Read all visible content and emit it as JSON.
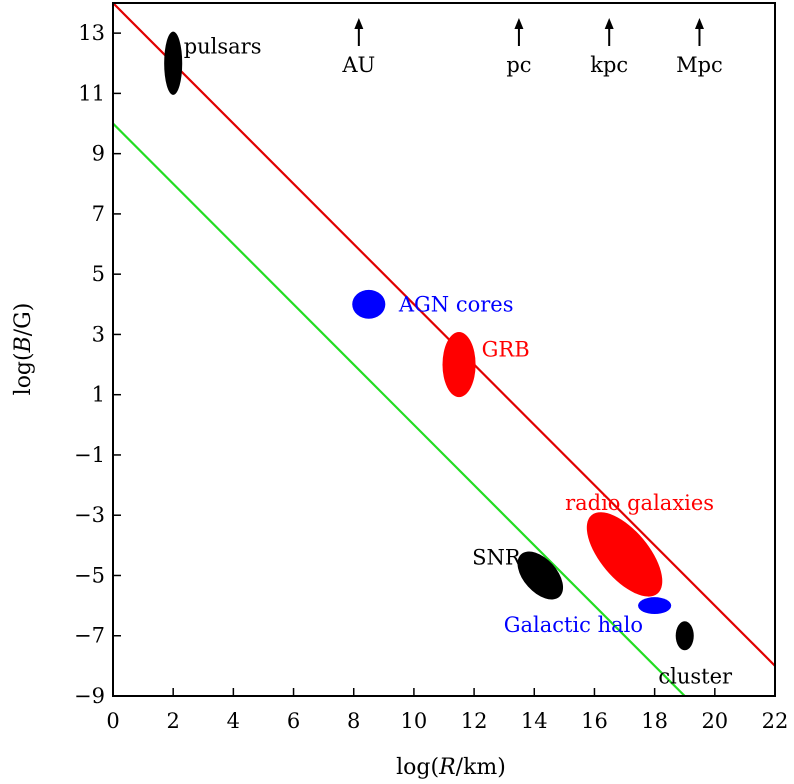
{
  "chart_data": {
    "type": "scatter",
    "xlabel_parts": {
      "prefix": "log(",
      "var": "R",
      "suffix": "/km)"
    },
    "ylabel_parts": {
      "prefix": "log(",
      "var": "B",
      "suffix": "/G)"
    },
    "xlim": [
      0,
      22
    ],
    "ylim": [
      -9,
      14
    ],
    "x_ticks": [
      0,
      2,
      4,
      6,
      8,
      10,
      12,
      14,
      16,
      18,
      20,
      22
    ],
    "y_ticks": [
      -9,
      -7,
      -5,
      -3,
      -1,
      1,
      3,
      5,
      7,
      9,
      11,
      13
    ],
    "x_tick_labels": [
      "0",
      "2",
      "4",
      "6",
      "8",
      "10",
      "12",
      "14",
      "16",
      "18",
      "20",
      "22"
    ],
    "y_tick_labels": [
      "−9",
      "−7",
      "−5",
      "−3",
      "−1",
      "1",
      "3",
      "5",
      "7",
      "9",
      "11",
      "13"
    ],
    "grid": false,
    "lines": [
      {
        "color": "#e00000",
        "x": [
          0,
          22
        ],
        "y": [
          14,
          -8
        ]
      },
      {
        "color": "#22dd22",
        "x": [
          0,
          19
        ],
        "y": [
          10,
          -9
        ]
      }
    ],
    "sources": [
      {
        "label": "pulsars",
        "x": 2,
        "y": 12,
        "rx": 0.3,
        "ry": 1.05,
        "angle": 0,
        "color": "#000000"
      },
      {
        "label": "AGN cores",
        "x": 8.5,
        "y": 4,
        "rx": 0.55,
        "ry": 0.48,
        "angle": 0,
        "color": "#0000ff"
      },
      {
        "label": "GRB",
        "x": 11.5,
        "y": 2,
        "rx": 0.55,
        "ry": 1.08,
        "angle": 0,
        "color": "#ff0000"
      },
      {
        "label": "radio galaxies",
        "x": 17,
        "y": -4.3,
        "rx": 0.8,
        "ry": 1.7,
        "angle": -40,
        "color": "#ff0000"
      },
      {
        "label": "SNR",
        "x": 14.2,
        "y": -5,
        "rx": 0.55,
        "ry": 0.95,
        "angle": -42,
        "color": "#000000"
      },
      {
        "label": "Galactic halo",
        "x": 18,
        "y": -6,
        "rx": 0.55,
        "ry": 0.28,
        "angle": 0,
        "color": "#0000ff"
      },
      {
        "label": "cluster",
        "x": 19,
        "y": -7,
        "rx": 0.3,
        "ry": 0.48,
        "angle": 0,
        "color": "#000000"
      }
    ],
    "scale_markers": [
      {
        "label": "AU",
        "x": 8.17
      },
      {
        "label": "pc",
        "x": 13.49
      },
      {
        "label": "kpc",
        "x": 16.49
      },
      {
        "label": "Mpc",
        "x": 19.49
      }
    ]
  }
}
